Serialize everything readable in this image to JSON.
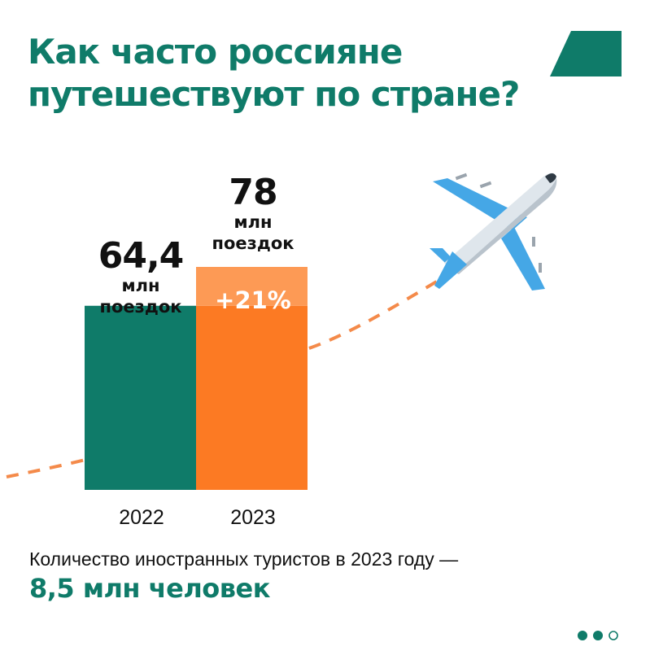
{
  "title": {
    "line1": "Как часто россияне",
    "line2": "путешествуют по стране?"
  },
  "chart_data": {
    "type": "bar",
    "categories": [
      "2022",
      "2023"
    ],
    "values": [
      64.4,
      78
    ],
    "value_labels": [
      "64,4",
      "78"
    ],
    "unit_label": [
      "млн",
      "поездок"
    ],
    "growth_label": "+21%",
    "ylim": [
      0,
      78
    ],
    "colors": [
      "#0f7b69",
      "#fc7a23"
    ],
    "growth_color": "#fd9a55"
  },
  "footer": {
    "label": "Количество иностранных туристов в 2023 году —",
    "value": "8,5 млн человек"
  },
  "icons": {
    "airplane": "airplane-icon",
    "corner": "corner-shape",
    "dots": "page-dots"
  },
  "colors": {
    "brand_green": "#0f7b69",
    "accent_orange": "#fc7a23",
    "plane_blue": "#45a7e6",
    "plane_body": "#dfe6ec"
  },
  "pagination": {
    "total": 3,
    "active": 2
  }
}
